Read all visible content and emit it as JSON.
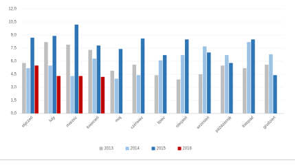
{
  "chart_data": {
    "type": "bar",
    "categories": [
      "styczeń",
      "luty",
      "marzec",
      "kwiecień",
      "maj",
      "czerwiec",
      "lipiec",
      "sierpień",
      "wrzesień",
      "październik",
      "listopad",
      "grudzień"
    ],
    "series": [
      {
        "name": "2013",
        "color": "#bfbfbf",
        "values": [
          5.8,
          8.2,
          7.9,
          7.3,
          4.9,
          5.6,
          4.4,
          3.9,
          4.5,
          5.5,
          5.2,
          5.6
        ]
      },
      {
        "name": "2014",
        "color": "#9dc3e6",
        "values": [
          5.2,
          5.5,
          4.3,
          6.3,
          4.0,
          4.4,
          6.1,
          6.7,
          7.7,
          6.7,
          8.2,
          6.8
        ]
      },
      {
        "name": "2015",
        "color": "#2e75b6",
        "values": [
          8.7,
          8.9,
          10.2,
          7.8,
          7.4,
          8.6,
          6.7,
          8.5,
          7.0,
          5.8,
          8.5,
          4.4
        ]
      },
      {
        "name": "2016",
        "color": "#c00000",
        "values": [
          5.5,
          4.3,
          4.3,
          4.2,
          null,
          null,
          null,
          null,
          null,
          null,
          null,
          null
        ]
      }
    ],
    "ylim": [
      0,
      12
    ],
    "yticks": [
      {
        "value": 0,
        "label": "0,0"
      },
      {
        "value": 1.5,
        "label": "1,5"
      },
      {
        "value": 3,
        "label": "3,0"
      },
      {
        "value": 4.5,
        "label": "4,5"
      },
      {
        "value": 6,
        "label": "6,0"
      },
      {
        "value": 7.5,
        "label": "7,5"
      },
      {
        "value": 9,
        "label": "9,0"
      },
      {
        "value": 10.5,
        "label": "10,5"
      },
      {
        "value": 12,
        "label": "12,0"
      }
    ],
    "grid": true,
    "legend": "bottom"
  }
}
